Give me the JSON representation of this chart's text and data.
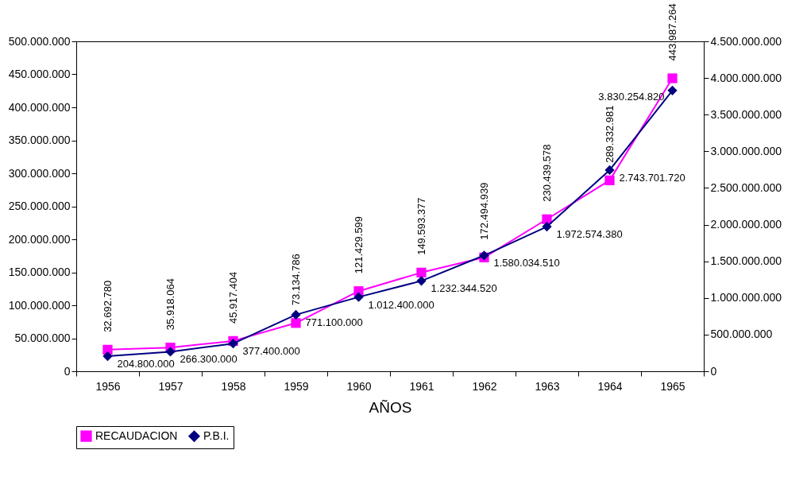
{
  "chart_data": {
    "type": "line",
    "xlabel": "AÑOS",
    "categories": [
      "1956",
      "1957",
      "1958",
      "1959",
      "1960",
      "1961",
      "1962",
      "1963",
      "1964",
      "1965"
    ],
    "series": [
      {
        "name": "RECAUDACION",
        "color": "#ff00ff",
        "marker": "square",
        "values": [
          32692780,
          35918064,
          45917404,
          73134786,
          121429599,
          149593377,
          172494939,
          230439578,
          289332981,
          443987264
        ],
        "value_labels": [
          "32.692.780",
          "35.918.064",
          "45.917.404",
          "73.134.786",
          "121.429.599",
          "149.593.377",
          "172.494.939",
          "230.439.578",
          "289.332.981",
          "443.987.264"
        ]
      },
      {
        "name": "P.B.I.",
        "color": "#000080",
        "marker": "diamond",
        "axis": "y2",
        "values": [
          204800000,
          266300000,
          377400000,
          771100000,
          1012400000,
          1232344520,
          1580034510,
          1972574380,
          2743701720,
          3830254820
        ],
        "value_labels": [
          "204.800.000",
          "266.300.000",
          "377.400.000",
          "771.100.000",
          "1.012.400.000",
          "1.232.344.520",
          "1.580.034.510",
          "1.972.574.380",
          "2.743.701.720",
          "3.830.254.820"
        ]
      }
    ],
    "ylim": [
      0,
      500000000
    ],
    "yticks": [
      0,
      {
        "value": 50000000,
        "label": "50.000.000"
      },
      {
        "value": 100000000,
        "label": "100.000.000"
      },
      {
        "value": 150000000,
        "label": "150.000.000"
      },
      {
        "value": 200000000,
        "label": "200.000.000"
      },
      {
        "value": 250000000,
        "label": "250.000.000"
      },
      {
        "value": 300000000,
        "label": "300.000.000"
      },
      {
        "value": 350000000,
        "label": "350.000.000"
      },
      {
        "value": 400000000,
        "label": "400.000.000"
      },
      {
        "value": 450000000,
        "label": "450.000.000"
      },
      {
        "value": 500000000,
        "label": "500.000.000"
      }
    ],
    "y2lim": [
      0,
      4500000000
    ],
    "y2ticks": [
      0,
      {
        "value": 500000000,
        "label": "500.000.000"
      },
      {
        "value": 1000000000,
        "label": "1.000.000.000"
      },
      {
        "value": 1500000000,
        "label": "1.500.000.000"
      },
      {
        "value": 2000000000,
        "label": "2.000.000.000"
      },
      {
        "value": 2500000000,
        "label": "2.500.000.000"
      },
      {
        "value": 3000000000,
        "label": "3.000.000.000"
      },
      {
        "value": 3500000000,
        "label": "3.500.000.000"
      },
      {
        "value": 4000000000,
        "label": "4.000.000.000"
      },
      {
        "value": 4500000000,
        "label": "4.500.000.000"
      }
    ],
    "data_labels": true,
    "grid": false,
    "legend": "bottom"
  }
}
